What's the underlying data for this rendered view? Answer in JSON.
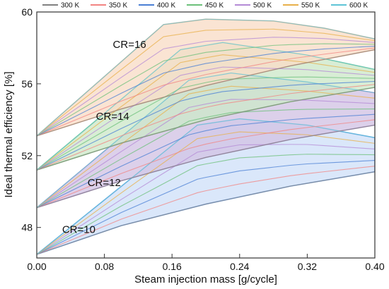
{
  "chart_data": {
    "type": "area",
    "title": "",
    "xlabel": "Steam injection mass [g/cycle]",
    "ylabel": "Ideal thermal efficiency [%]",
    "xlim": [
      0,
      0.4
    ],
    "ylim": [
      46.3,
      60
    ],
    "x_ticks": [
      "0.00",
      "0.08",
      "0.16",
      "0.24",
      "0.32",
      "0.40"
    ],
    "y_ticks": [
      "48",
      "52",
      "56",
      "60"
    ],
    "grid": false,
    "legend_position": "top",
    "legend": [
      {
        "label": "300 K",
        "color": "#808080"
      },
      {
        "label": "350 K",
        "color": "#f28482"
      },
      {
        "label": "400 K",
        "color": "#4a7fd4"
      },
      {
        "label": "450 K",
        "color": "#6cc07a"
      },
      {
        "label": "500 K",
        "color": "#b48ad6"
      },
      {
        "label": "550 K",
        "color": "#e8b04a"
      },
      {
        "label": "600 K",
        "color": "#5ec4d6"
      }
    ],
    "groups": [
      {
        "label": "CR=10",
        "label_pos": {
          "x": 0.03,
          "y": 47.7
        },
        "fill": "#cfe0f8",
        "edge": "#7aa8e8",
        "y0": 46.5,
        "lower": [
          [
            0,
            46.5
          ],
          [
            0.1,
            48.1
          ],
          [
            0.2,
            49.3
          ],
          [
            0.3,
            50.3
          ],
          [
            0.4,
            51.1
          ]
        ],
        "upper": [
          [
            0,
            46.5
          ],
          [
            0.19,
            53.7
          ],
          [
            0.24,
            54.05
          ],
          [
            0.32,
            53.7
          ],
          [
            0.4,
            53.0
          ]
        ]
      },
      {
        "label": "CR=12",
        "label_pos": {
          "x": 0.06,
          "y": 50.3
        },
        "fill": "#d2c3e4",
        "edge": "#b59ad0",
        "y0": 49.1,
        "lower": [
          [
            0,
            49.1
          ],
          [
            0.1,
            50.6
          ],
          [
            0.2,
            51.9
          ],
          [
            0.3,
            52.9
          ],
          [
            0.4,
            53.7
          ]
        ],
        "upper": [
          [
            0,
            49.1
          ],
          [
            0.18,
            56.2
          ],
          [
            0.23,
            56.6
          ],
          [
            0.32,
            56.1
          ],
          [
            0.4,
            55.5
          ]
        ]
      },
      {
        "label": "CR=14",
        "label_pos": {
          "x": 0.07,
          "y": 54.0
        },
        "fill": "#cde8c9",
        "edge": "#93cf8c",
        "y0": 51.2,
        "lower": [
          [
            0,
            51.2
          ],
          [
            0.1,
            52.7
          ],
          [
            0.2,
            54.0
          ],
          [
            0.3,
            55.0
          ],
          [
            0.4,
            55.8
          ]
        ],
        "upper": [
          [
            0,
            51.2
          ],
          [
            0.17,
            57.9
          ],
          [
            0.22,
            58.3
          ],
          [
            0.32,
            57.6
          ],
          [
            0.4,
            56.8
          ]
        ]
      },
      {
        "label": "CR=16",
        "label_pos": {
          "x": 0.09,
          "y": 58.0
        },
        "fill": "#f9dcc6",
        "edge": "#f0b892",
        "y0": 53.1,
        "lower": [
          [
            0,
            53.1
          ],
          [
            0.1,
            54.6
          ],
          [
            0.2,
            55.9
          ],
          [
            0.3,
            57.0
          ],
          [
            0.4,
            57.9
          ]
        ],
        "upper": [
          [
            0,
            53.1
          ],
          [
            0.15,
            59.3
          ],
          [
            0.2,
            59.6
          ],
          [
            0.28,
            59.5
          ],
          [
            0.34,
            59.1
          ],
          [
            0.4,
            58.5
          ]
        ]
      }
    ]
  }
}
